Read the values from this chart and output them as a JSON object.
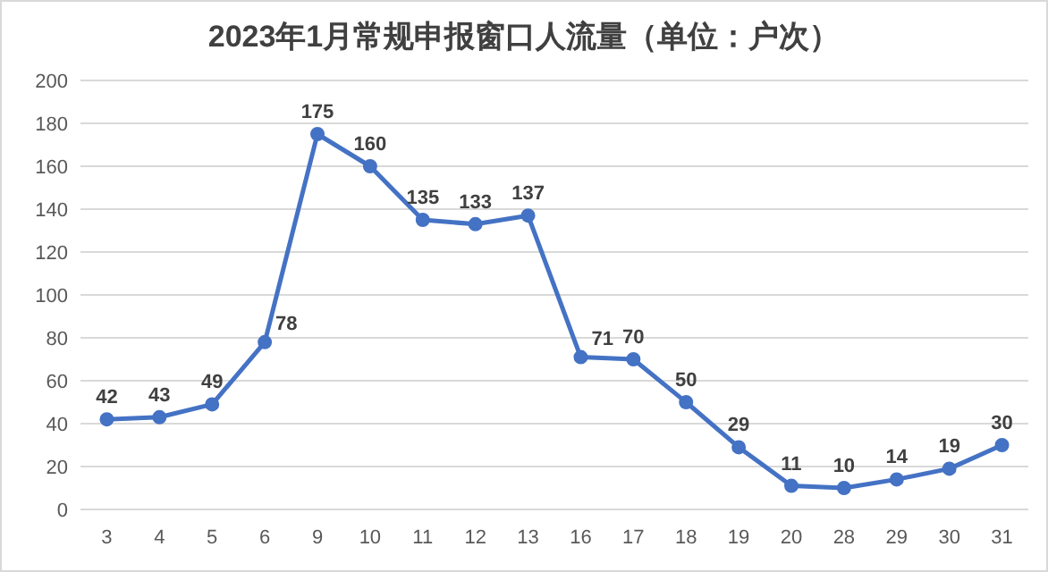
{
  "chart_data": {
    "type": "line",
    "title": "2023年1月常规申报窗口人流量（单位：户次）",
    "categories": [
      "3",
      "4",
      "5",
      "6",
      "9",
      "10",
      "11",
      "12",
      "13",
      "16",
      "17",
      "18",
      "19",
      "20",
      "28",
      "29",
      "30",
      "31"
    ],
    "series": [
      {
        "color": "#4472c4",
        "values": [
          42,
          43,
          49,
          78,
          175,
          160,
          135,
          133,
          137,
          71,
          70,
          50,
          29,
          11,
          10,
          14,
          19,
          30
        ]
      }
    ],
    "ylim": [
      0,
      200
    ],
    "yticks": [
      0,
      20,
      40,
      60,
      80,
      100,
      120,
      140,
      160,
      180,
      200
    ],
    "grid": "y",
    "marker": "circle",
    "line_style": "solid",
    "data_labels": true
  }
}
